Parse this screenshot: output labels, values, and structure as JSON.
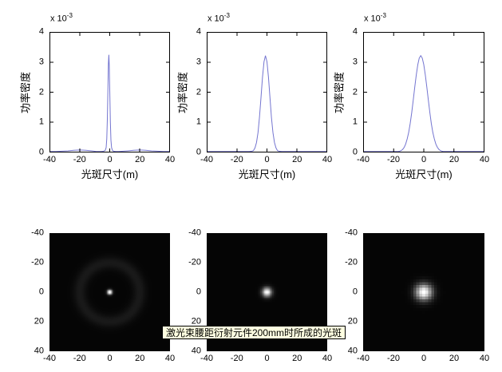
{
  "figure": {
    "background": "#ffffff",
    "tooltip": {
      "text": "激光束腰距衍射元件200mm时所成的光斑",
      "bg": "#ffffe1",
      "border": "#000000",
      "text_color": "#000000"
    }
  },
  "chart_data": [
    {
      "type": "line",
      "title": "",
      "xlabel": "光斑尺寸(m)",
      "ylabel": "功率密度",
      "y_exponent_base": "x 10",
      "y_exponent_power": "-3",
      "xlim": [
        -40,
        40
      ],
      "ylim_scaled": [
        0,
        4
      ],
      "y_unit_scale": 0.001,
      "x_ticks": [
        -40,
        -20,
        0,
        20,
        40
      ],
      "y_ticks": [
        0,
        1,
        2,
        3,
        4
      ],
      "grid": false,
      "line_color": "#7475d0",
      "points": [
        [
          -40,
          0.02
        ],
        [
          -36,
          0.02
        ],
        [
          -32,
          0.03
        ],
        [
          -28,
          0.04
        ],
        [
          -24,
          0.06
        ],
        [
          -20,
          0.07
        ],
        [
          -16,
          0.06
        ],
        [
          -12,
          0.04
        ],
        [
          -9,
          0.02
        ],
        [
          -6,
          0.02
        ],
        [
          -4,
          0.03
        ],
        [
          -3,
          0.06
        ],
        [
          -2.4,
          0.15
        ],
        [
          -2,
          0.45
        ],
        [
          -1.6,
          1.1
        ],
        [
          -1.2,
          2.2
        ],
        [
          -0.9,
          2.95
        ],
        [
          -0.6,
          3.25
        ],
        [
          -0.3,
          2.9
        ],
        [
          0,
          2.1
        ],
        [
          0.4,
          1.0
        ],
        [
          0.8,
          0.4
        ],
        [
          1.2,
          0.15
        ],
        [
          1.8,
          0.06
        ],
        [
          2.5,
          0.03
        ],
        [
          4,
          0.02
        ],
        [
          6,
          0.02
        ],
        [
          9,
          0.03
        ],
        [
          12,
          0.04
        ],
        [
          16,
          0.06
        ],
        [
          20,
          0.07
        ],
        [
          24,
          0.06
        ],
        [
          28,
          0.04
        ],
        [
          32,
          0.03
        ],
        [
          36,
          0.02
        ],
        [
          40,
          0.02
        ]
      ]
    },
    {
      "type": "line",
      "title": "",
      "xlabel": "光斑尺寸(m)",
      "ylabel": "功率密度",
      "y_exponent_base": "x 10",
      "y_exponent_power": "-3",
      "xlim": [
        -40,
        40
      ],
      "ylim_scaled": [
        0,
        4
      ],
      "y_unit_scale": 0.001,
      "x_ticks": [
        -40,
        -20,
        0,
        20,
        40
      ],
      "y_ticks": [
        0,
        1,
        2,
        3,
        4
      ],
      "grid": false,
      "line_color": "#7475d0",
      "points": [
        [
          -40,
          0.02
        ],
        [
          -30,
          0.02
        ],
        [
          -20,
          0.02
        ],
        [
          -15,
          0.02
        ],
        [
          -12,
          0.02
        ],
        [
          -10,
          0.03
        ],
        [
          -9,
          0.05
        ],
        [
          -8,
          0.14
        ],
        [
          -7,
          0.32
        ],
        [
          -6,
          0.65
        ],
        [
          -5,
          1.16
        ],
        [
          -4,
          1.81
        ],
        [
          -3,
          2.5
        ],
        [
          -2,
          3.02
        ],
        [
          -1,
          3.22
        ],
        [
          0,
          3.02
        ],
        [
          1,
          2.5
        ],
        [
          2,
          1.81
        ],
        [
          3,
          1.16
        ],
        [
          4,
          0.65
        ],
        [
          5,
          0.32
        ],
        [
          6,
          0.14
        ],
        [
          7,
          0.05
        ],
        [
          8,
          0.03
        ],
        [
          10,
          0.02
        ],
        [
          15,
          0.02
        ],
        [
          20,
          0.02
        ],
        [
          30,
          0.02
        ],
        [
          40,
          0.02
        ]
      ]
    },
    {
      "type": "line",
      "title": "",
      "xlabel": "光斑尺寸(m)",
      "ylabel": "功率密度",
      "y_exponent_base": "x 10",
      "y_exponent_power": "-3",
      "xlim": [
        -40,
        40
      ],
      "ylim_scaled": [
        0,
        4
      ],
      "y_unit_scale": 0.001,
      "x_ticks": [
        -40,
        -20,
        0,
        20,
        40
      ],
      "y_ticks": [
        0,
        1,
        2,
        3,
        4
      ],
      "grid": false,
      "line_color": "#7475d0",
      "points": [
        [
          -40,
          0.02
        ],
        [
          -30,
          0.02
        ],
        [
          -20,
          0.02
        ],
        [
          -17,
          0.02
        ],
        [
          -16,
          0.03
        ],
        [
          -15,
          0.05
        ],
        [
          -14,
          0.09
        ],
        [
          -13,
          0.16
        ],
        [
          -12,
          0.27
        ],
        [
          -11,
          0.44
        ],
        [
          -10,
          0.66
        ],
        [
          -9,
          0.96
        ],
        [
          -8,
          1.32
        ],
        [
          -7,
          1.74
        ],
        [
          -6,
          2.17
        ],
        [
          -5,
          2.58
        ],
        [
          -4,
          2.92
        ],
        [
          -3,
          3.14
        ],
        [
          -2,
          3.22
        ],
        [
          -1,
          3.14
        ],
        [
          0,
          2.92
        ],
        [
          1,
          2.58
        ],
        [
          2,
          2.17
        ],
        [
          3,
          1.74
        ],
        [
          4,
          1.32
        ],
        [
          5,
          0.96
        ],
        [
          6,
          0.66
        ],
        [
          7,
          0.44
        ],
        [
          8,
          0.27
        ],
        [
          9,
          0.16
        ],
        [
          10,
          0.09
        ],
        [
          11,
          0.05
        ],
        [
          12,
          0.03
        ],
        [
          13,
          0.02
        ],
        [
          20,
          0.02
        ],
        [
          30,
          0.02
        ],
        [
          40,
          0.02
        ]
      ]
    },
    {
      "type": "heatmap",
      "title": "",
      "xlim": [
        -40,
        40
      ],
      "ylim": [
        -40,
        40
      ],
      "y_axis_direction": "reverse",
      "x_ticks": [
        -40,
        -20,
        0,
        20,
        40
      ],
      "y_ticks": [
        -40,
        -20,
        0,
        20,
        40
      ],
      "colormap": "gray",
      "background": "#000000",
      "spot": {
        "cx": 0,
        "cy": 0,
        "sigma": 1.2,
        "peak": 1.0
      },
      "ring": {
        "radius": 20,
        "width": 3,
        "intensity": 0.08
      },
      "base_level": 0.02,
      "grid_n": 161
    },
    {
      "type": "heatmap",
      "title": "",
      "xlim": [
        -40,
        40
      ],
      "ylim": [
        -40,
        40
      ],
      "y_axis_direction": "reverse",
      "x_ticks": [
        -40,
        -20,
        0,
        20,
        40
      ],
      "y_ticks": [
        -40,
        -20,
        0,
        20,
        40
      ],
      "colormap": "gray",
      "background": "#000000",
      "spot": {
        "cx": 0,
        "cy": 0,
        "sigma": 2.2,
        "peak": 1.0
      },
      "ring": null,
      "base_level": 0.02,
      "grid_n": 81
    },
    {
      "type": "heatmap",
      "title": "",
      "xlim": [
        -40,
        40
      ],
      "ylim": [
        -40,
        40
      ],
      "y_axis_direction": "reverse",
      "x_ticks": [
        -40,
        -20,
        0,
        20,
        40
      ],
      "y_ticks": [
        -40,
        -20,
        0,
        20,
        40
      ],
      "colormap": "gray",
      "background": "#000000",
      "spot": {
        "cx": 0,
        "cy": 0,
        "sigma": 3.9,
        "peak": 1.0
      },
      "ring": null,
      "base_level": 0.02,
      "grid_n": 41
    }
  ]
}
